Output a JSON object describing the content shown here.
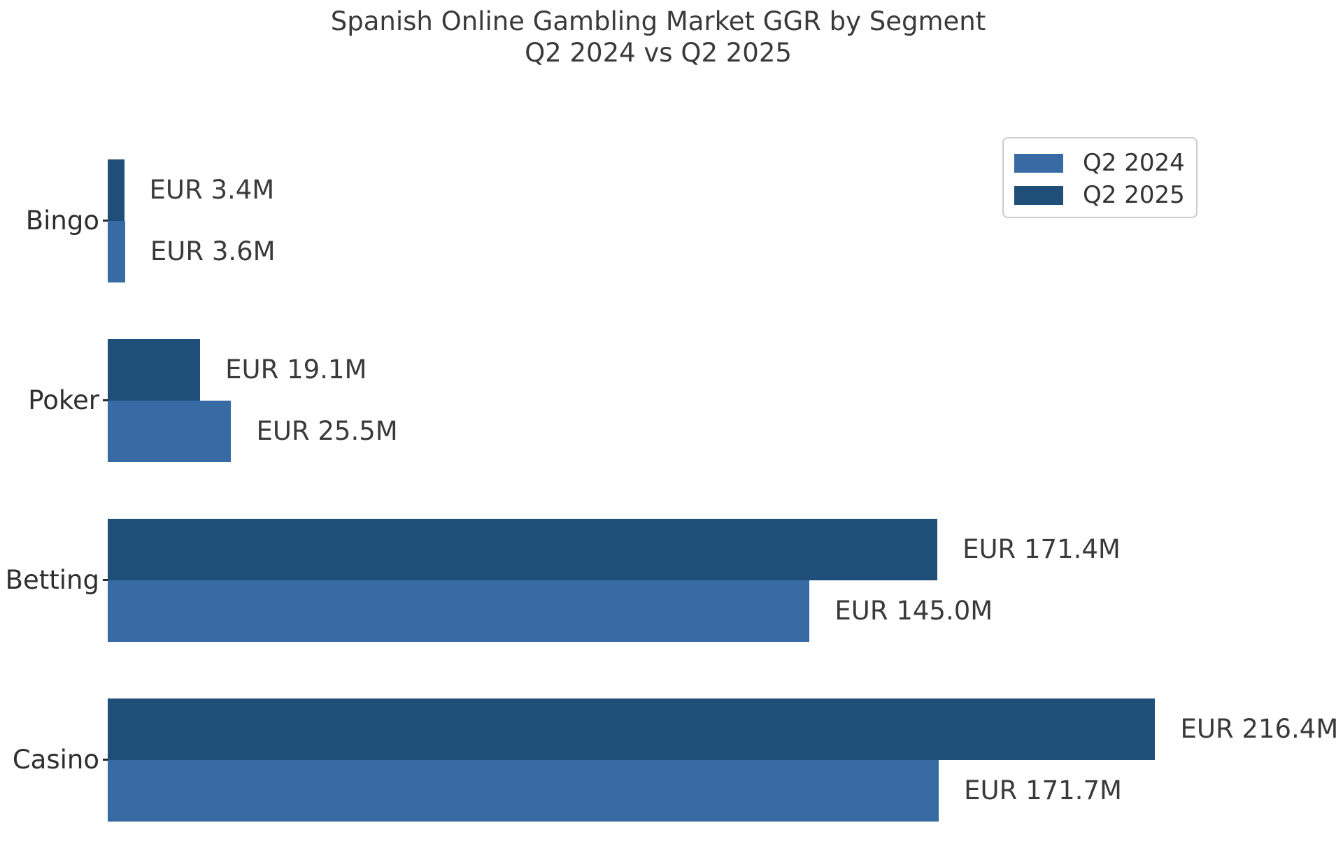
{
  "figure": {
    "title_line1": "Spanish Online Gambling Market GGR by Segment",
    "title_line2": "Q2 2024 vs Q2 2025",
    "background_color": "#ffffff",
    "text_color": "#3a3a3a"
  },
  "legend": {
    "position": "upper right",
    "items": [
      {
        "label": "Q2 2024",
        "color": "#386aa3"
      },
      {
        "label": "Q2 2025",
        "color": "#1f4e79"
      }
    ]
  },
  "chart_data": {
    "type": "bar",
    "orientation": "horizontal",
    "title": "Spanish Online Gambling Market GGR by Segment\nQ2 2024 vs Q2 2025",
    "categories_top_to_bottom": [
      "Bingo",
      "Poker",
      "Betting",
      "Casino"
    ],
    "series": [
      {
        "name": "Q2 2024",
        "color": "#386aa3",
        "values_eur_millions": [
          3.6,
          25.5,
          145.0,
          171.7
        ],
        "bar_labels": [
          "EUR 3.6M",
          "EUR 25.5M",
          "EUR 145.0M",
          "EUR 171.7M"
        ]
      },
      {
        "name": "Q2 2025",
        "color": "#1f4e79",
        "values_eur_millions": [
          3.4,
          19.1,
          171.4,
          216.4
        ],
        "bar_labels": [
          "EUR 3.4M",
          "EUR 19.1M",
          "EUR 171.4M",
          "EUR 216.4M"
        ]
      }
    ],
    "within_group_order_top_to_bottom": [
      "Q2 2025",
      "Q2 2024"
    ],
    "xlabel": "",
    "ylabel": "",
    "xlim": [
      0,
      232
    ],
    "grid": false,
    "axis_spines_visible": false,
    "x_axis_tick_labels_visible": false,
    "legend_position": "upper right"
  }
}
